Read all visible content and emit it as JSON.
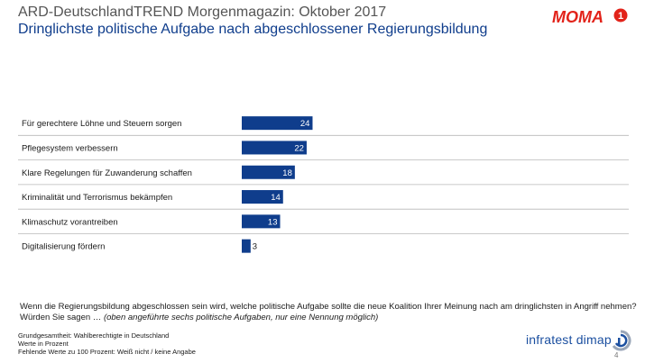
{
  "header": {
    "title": "ARD-DeutschlandTREND Morgenmagazin: Oktober 2017",
    "subtitle": "Dringlichste politische Aufgabe nach abgeschlossener Regierungsbildung",
    "logo_text": "MOMA",
    "logo_badge": "1"
  },
  "chart_data": {
    "type": "bar",
    "orientation": "horizontal",
    "categories": [
      "Für gerechtere Löhne und Steuern sorgen",
      "Pflegesystem verbessern",
      "Klare Regelungen für Zuwanderung schaffen",
      "Kriminalität und Terrorismus bekämpfen",
      "Klimaschutz vorantreiben",
      "Digitalisierung fördern"
    ],
    "values": [
      24,
      22,
      18,
      14,
      13,
      3
    ],
    "data_labels": [
      "24",
      "22",
      "18",
      "14",
      "13",
      "3"
    ],
    "xlim": [
      0,
      100
    ],
    "bar_color": "#0f3d8c",
    "grid": false
  },
  "question": {
    "text": "Wenn die Regierungsbildung abgeschlossen sein wird, welche politische Aufgabe sollte die neue Koalition Ihrer Meinung nach am dringlichsten in Angriff nehmen?",
    "prompt": "Würden Sie sagen …",
    "hint": "(oben angeführte sechs politische Aufgaben, nur eine Nennung möglich)"
  },
  "footer": {
    "line1": "Grundgesamtheit:  Wahlberechtigte in Deutschland",
    "line2": "Werte in Prozent",
    "line3": "Fehlende Werte zu 100 Prozent: Weiß nicht / keine Angabe"
  },
  "brand": {
    "name": "infratest dimap",
    "page_number": "4"
  },
  "colors": {
    "accent": "#0f3d8c",
    "moma_red": "#e2231a",
    "brand_blue": "#1b4fa0"
  }
}
